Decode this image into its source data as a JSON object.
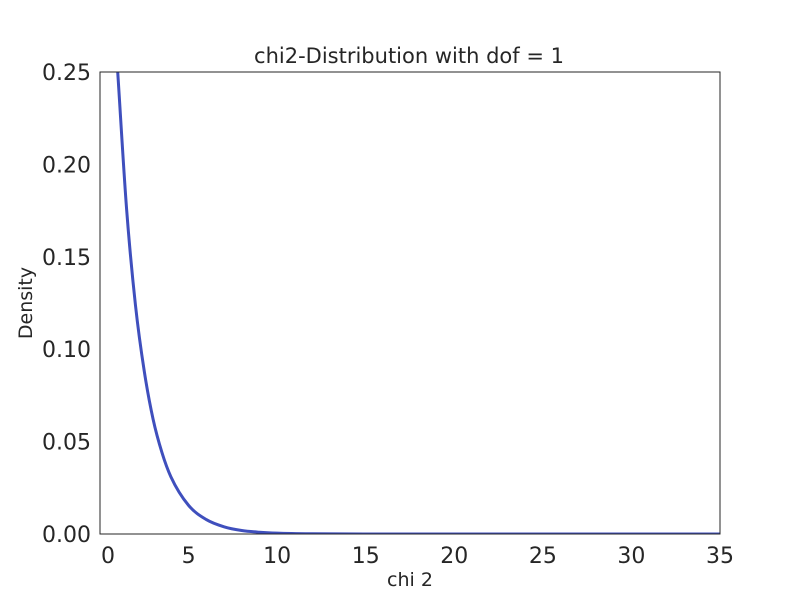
{
  "chart_data": {
    "type": "line",
    "title": "chi2-Distribution with dof = 1",
    "xlabel": "chi 2",
    "ylabel": "Density",
    "xlim": [
      0,
      35
    ],
    "ylim": [
      0,
      0.25
    ],
    "grid": false,
    "legend": "none",
    "x_ticks": [
      "0",
      "5",
      "10",
      "15",
      "20",
      "25",
      "30",
      "35"
    ],
    "y_ticks": [
      "0.00",
      "0.05",
      "0.10",
      "0.15",
      "0.20",
      "0.25"
    ],
    "series": [
      {
        "color": "#3f4fbd",
        "x": [
          1.0,
          1.5,
          2.0,
          2.5,
          3.0,
          3.5,
          4.0,
          5.0,
          6.0,
          7.0,
          8.0,
          9.0,
          10.0,
          12.0,
          15.0,
          20.0,
          25.0,
          30.0,
          35.0
        ],
        "y": [
          0.25,
          0.176,
          0.124,
          0.088,
          0.062,
          0.044,
          0.031,
          0.0155,
          0.0078,
          0.0039,
          0.0019,
          0.00097,
          0.00048,
          0.00012,
          2e-05,
          0.0,
          0.0,
          0.0,
          0.0
        ]
      }
    ]
  }
}
